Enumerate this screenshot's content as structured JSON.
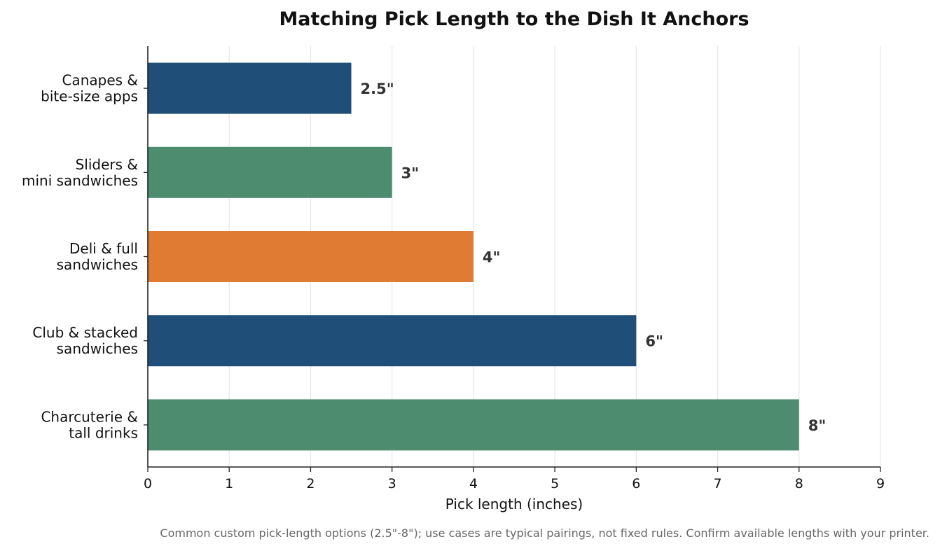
{
  "chart_data": {
    "type": "bar",
    "orientation": "horizontal",
    "title": "Matching Pick Length to the Dish It Anchors",
    "xlabel": "Pick length (inches)",
    "ylabel": "",
    "xlim": [
      0,
      9
    ],
    "xticks": [
      "0",
      "1",
      "2",
      "3",
      "4",
      "5",
      "6",
      "7",
      "8",
      "9"
    ],
    "grid": "vertical",
    "categories": [
      [
        "Canapes &",
        "bite-size apps"
      ],
      [
        "Sliders &",
        "mini sandwiches"
      ],
      [
        "Deli & full",
        "sandwiches"
      ],
      [
        "Club & stacked",
        "sandwiches"
      ],
      [
        "Charcuterie &",
        "tall drinks"
      ]
    ],
    "values": [
      2.5,
      3,
      4,
      6,
      8
    ],
    "data_labels": [
      "2.5\"",
      "3\"",
      "4\"",
      "6\"",
      "8\""
    ],
    "colors": [
      "#1f4e79",
      "#4d8c6f",
      "#e07b33",
      "#1f4e79",
      "#4d8c6f"
    ],
    "footnote": "Common custom pick-length options (2.5\"-8\"); use cases are typical pairings, not fixed rules. Confirm available lengths with your printer."
  }
}
